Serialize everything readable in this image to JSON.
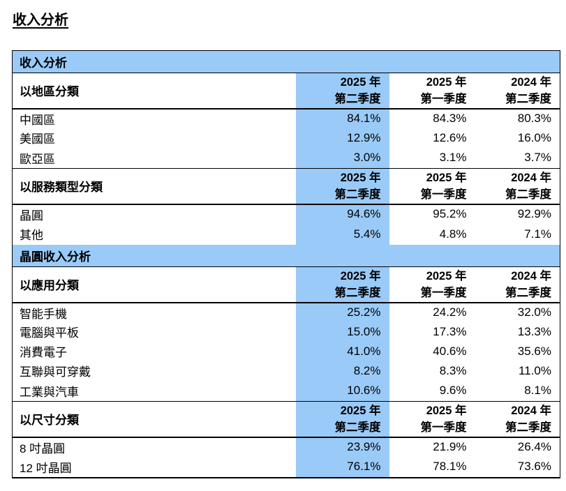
{
  "page": {
    "title": "收入分析"
  },
  "colors": {
    "highlight_blue": "#9ACAF8",
    "border": "#000000",
    "text": "#000000",
    "background": "#FFFFFF"
  },
  "table": {
    "band1_title": "收入分析",
    "band2_title": "晶圓收入分析",
    "quarters": [
      {
        "year": "2025 年",
        "quarter": "第二季度"
      },
      {
        "year": "2025 年",
        "quarter": "第一季度"
      },
      {
        "year": "2024 年",
        "quarter": "第二季度"
      }
    ],
    "sections": [
      {
        "label": "以地區分類",
        "rows": [
          {
            "label": "中國區",
            "values": [
              "84.1%",
              "84.3%",
              "80.3%"
            ]
          },
          {
            "label": "美國區",
            "values": [
              "12.9%",
              "12.6%",
              "16.0%"
            ]
          },
          {
            "label": "歐亞區",
            "values": [
              "3.0%",
              "3.1%",
              "3.7%"
            ]
          }
        ]
      },
      {
        "label": "以服務類型分類",
        "rows": [
          {
            "label": "晶圓",
            "values": [
              "94.6%",
              "95.2%",
              "92.9%"
            ]
          },
          {
            "label": "其他",
            "values": [
              "5.4%",
              "4.8%",
              "7.1%"
            ]
          }
        ]
      },
      {
        "label": "以應用分類",
        "rows": [
          {
            "label": "智能手機",
            "values": [
              "25.2%",
              "24.2%",
              "32.0%"
            ]
          },
          {
            "label": "電腦與平板",
            "values": [
              "15.0%",
              "17.3%",
              "13.3%"
            ]
          },
          {
            "label": "消費電子",
            "values": [
              "41.0%",
              "40.6%",
              "35.6%"
            ]
          },
          {
            "label": "互聯與可穿戴",
            "values": [
              "8.2%",
              "8.3%",
              "11.0%"
            ]
          },
          {
            "label": "工業與汽車",
            "values": [
              "10.6%",
              "9.6%",
              "8.1%"
            ]
          }
        ]
      },
      {
        "label": "以尺寸分類",
        "rows": [
          {
            "label": "8 吋晶圓",
            "values": [
              "23.9%",
              "21.9%",
              "26.4%"
            ]
          },
          {
            "label": "12 吋晶圓",
            "values": [
              "76.1%",
              "78.1%",
              "73.6%"
            ]
          }
        ]
      }
    ]
  }
}
